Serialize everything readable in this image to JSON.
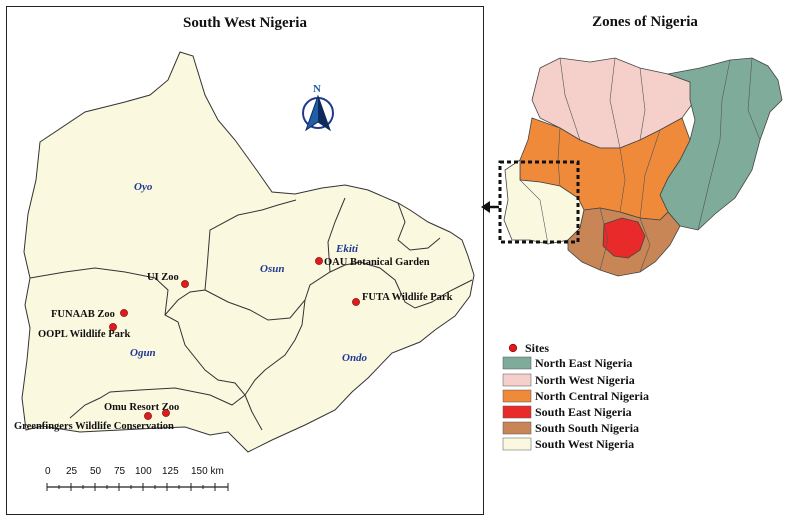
{
  "main_map": {
    "title": "South West Nigeria",
    "north_label": "N",
    "states": {
      "oyo": "Oyo",
      "osun": "Osun",
      "ekiti": "Ekiti",
      "ogun": "Ogun",
      "ondo": "Ondo"
    },
    "sites": [
      {
        "id": "ui-zoo",
        "label": "UI Zoo"
      },
      {
        "id": "oau-botanical-garden",
        "label": "OAU Botanical Garden"
      },
      {
        "id": "futa-wildlife-park",
        "label": "FUTA Wildlife Park"
      },
      {
        "id": "funaab-zoo",
        "label": "FUNAAB Zoo"
      },
      {
        "id": "oopl-wildlife-park",
        "label": "OOPL Wildlife Park"
      },
      {
        "id": "omu-resort-zoo",
        "label": "Omu Resort Zoo"
      },
      {
        "id": "greenfingers",
        "label": "Greenfingers Wildlife Conservation"
      }
    ],
    "scale_bar": {
      "ticks": [
        "0",
        "25",
        "50",
        "75",
        "100",
        "125",
        "150 km"
      ]
    }
  },
  "inset_map": {
    "title": "Zones of Nigeria"
  },
  "legend": {
    "sites_label": "Sites",
    "items": [
      {
        "label": "North East Nigeria",
        "color": "#7fab9a"
      },
      {
        "label": "North West Nigeria",
        "color": "#f5cfc9"
      },
      {
        "label": "North Central Nigeria",
        "color": "#f08a3b"
      },
      {
        "label": "South East Nigeria",
        "color": "#e82a2a"
      },
      {
        "label": "South South Nigeria",
        "color": "#c88556"
      },
      {
        "label": "South West Nigeria",
        "color": "#fbf8e0"
      }
    ]
  },
  "colors": {
    "land": "#fbf8e0",
    "site_marker": "#e01b1b",
    "state_label": "#1f3a93",
    "north_arrow": "#1f5fa8"
  }
}
